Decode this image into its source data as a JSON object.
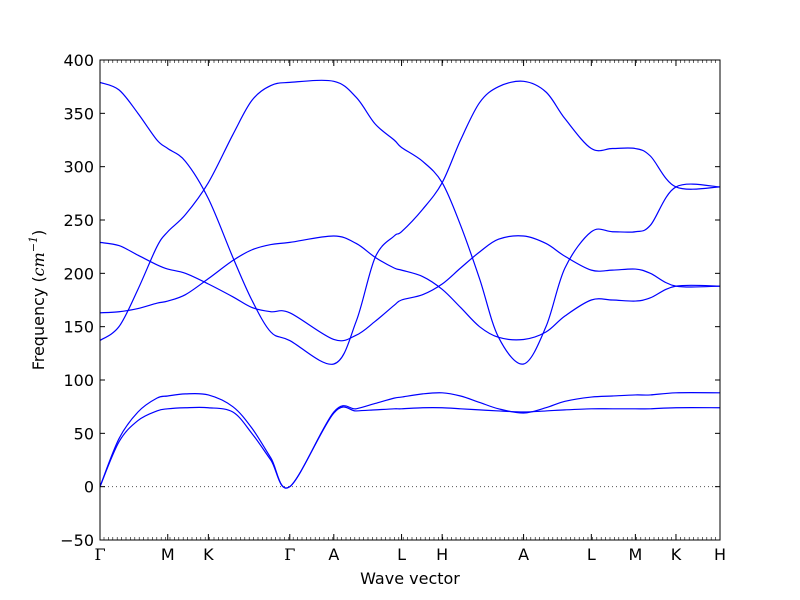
{
  "chart_data": {
    "type": "line",
    "title": "",
    "xlabel": "Wave vector",
    "ylabel_prefix": "Frequency (",
    "ylabel_unit": "cm",
    "ylabel_exp": "−1",
    "ylabel_suffix": ")",
    "ylim": [
      -50,
      400
    ],
    "yticks": [
      -50,
      0,
      50,
      100,
      150,
      200,
      250,
      300,
      350,
      400
    ],
    "ytick_labels": [
      "−50",
      "0",
      "50",
      "100",
      "150",
      "200",
      "250",
      "300",
      "350",
      "400"
    ],
    "xticks": [
      {
        "label": "Γ",
        "x": 0.0
      },
      {
        "label": "M",
        "x": 0.357
      },
      {
        "label": "K",
        "x": 0.571
      },
      {
        "label": "Γ",
        "x": 1.0
      },
      {
        "label": "A",
        "x": 1.232
      },
      {
        "label": "L",
        "x": 1.589
      },
      {
        "label": "H",
        "x": 1.803
      },
      {
        "label": "A",
        "x": 2.232
      },
      {
        "label": "L",
        "x": 2.589
      },
      {
        "label": "M",
        "x": 2.821
      },
      {
        "label": "K",
        "x": 3.035
      },
      {
        "label": "H",
        "x": 3.267
      }
    ],
    "xlim": [
      0,
      3.267
    ],
    "grid": false,
    "zero_line": true,
    "colors": {
      "bands": "#0000ff",
      "axes": "#000000",
      "zero_line": "#555555"
    },
    "series": [
      {
        "x": [
          0,
          0.1,
          0.2,
          0.3,
          0.357,
          0.45,
          0.571,
          0.7,
          0.8,
          0.9,
          1.0,
          1.232,
          1.35,
          1.45,
          1.55,
          1.589,
          1.7,
          1.803,
          1.9,
          2.0,
          2.1,
          2.232,
          2.35,
          2.45,
          2.589,
          2.7,
          2.821,
          2.9,
          3.035,
          3.267
        ],
        "y": [
          0,
          42,
          62,
          71,
          73,
          74,
          74,
          70,
          50,
          25,
          0,
          69,
          71,
          72,
          73,
          73,
          74,
          74,
          73,
          72,
          71,
          70,
          71,
          72,
          73,
          73,
          73,
          73,
          74,
          74
        ]
      },
      {
        "x": [
          0,
          0.1,
          0.2,
          0.3,
          0.357,
          0.45,
          0.571,
          0.7,
          0.8,
          0.9,
          1.0,
          1.232,
          1.35,
          1.45,
          1.55,
          1.589,
          1.7,
          1.803,
          1.9,
          2.0,
          2.1,
          2.232,
          2.35,
          2.45,
          2.589,
          2.7,
          2.821,
          2.9,
          3.035,
          3.267
        ],
        "y": [
          0,
          45,
          70,
          83,
          85,
          87,
          86,
          75,
          55,
          27,
          0,
          70,
          73,
          78,
          83,
          84,
          87,
          88,
          85,
          79,
          73,
          69,
          74,
          80,
          84,
          85,
          86,
          86,
          88,
          88
        ]
      },
      {
        "x": [
          0,
          0.1,
          0.2,
          0.3,
          0.357,
          0.45,
          0.571,
          0.7,
          0.8,
          0.9,
          1.0,
          1.232,
          1.35,
          1.45,
          1.55,
          1.589,
          1.7,
          1.803,
          1.9,
          2.0,
          2.1,
          2.232,
          2.35,
          2.45,
          2.589,
          2.7,
          2.821,
          2.9,
          3.035,
          3.267
        ],
        "y": [
          137,
          150,
          185,
          225,
          239,
          255,
          285,
          330,
          362,
          376,
          379,
          380,
          365,
          340,
          325,
          318,
          305,
          285,
          245,
          195,
          140,
          115,
          150,
          205,
          239,
          239,
          239,
          245,
          281,
          281
        ]
      },
      {
        "x": [
          0,
          0.1,
          0.2,
          0.3,
          0.357,
          0.45,
          0.571,
          0.7,
          0.8,
          0.9,
          1.0,
          1.232,
          1.35,
          1.45,
          1.55,
          1.589,
          1.7,
          1.803,
          1.9,
          2.0,
          2.1,
          2.232,
          2.35,
          2.45,
          2.589,
          2.7,
          2.821,
          2.9,
          3.035,
          3.267
        ],
        "y": [
          379,
          372,
          350,
          325,
          317,
          305,
          270,
          215,
          175,
          145,
          137,
          115,
          155,
          215,
          235,
          239,
          260,
          285,
          325,
          360,
          375,
          380,
          370,
          345,
          317,
          317,
          317,
          310,
          281,
          281
        ]
      },
      {
        "x": [
          0,
          0.1,
          0.2,
          0.3,
          0.357,
          0.45,
          0.571,
          0.7,
          0.8,
          0.9,
          1.0,
          1.232,
          1.35,
          1.45,
          1.55,
          1.589,
          1.7,
          1.803,
          1.9,
          2.0,
          2.1,
          2.232,
          2.35,
          2.45,
          2.589,
          2.7,
          2.821,
          2.9,
          3.035,
          3.267
        ],
        "y": [
          229,
          226,
          217,
          208,
          204,
          200,
          190,
          178,
          168,
          164,
          163,
          138,
          142,
          155,
          170,
          175,
          180,
          190,
          205,
          220,
          232,
          235,
          228,
          216,
          203,
          203,
          204,
          200,
          188,
          188
        ]
      },
      {
        "x": [
          0,
          0.1,
          0.2,
          0.3,
          0.357,
          0.45,
          0.571,
          0.7,
          0.8,
          0.9,
          1.0,
          1.232,
          1.35,
          1.45,
          1.55,
          1.589,
          1.7,
          1.803,
          1.9,
          2.0,
          2.1,
          2.232,
          2.35,
          2.45,
          2.589,
          2.7,
          2.821,
          2.9,
          3.035,
          3.267
        ],
        "y": [
          163,
          164,
          167,
          172,
          174,
          180,
          195,
          212,
          222,
          227,
          229,
          235,
          228,
          215,
          205,
          203,
          197,
          185,
          168,
          150,
          140,
          138,
          145,
          160,
          175,
          175,
          174,
          177,
          188,
          188
        ]
      }
    ]
  }
}
